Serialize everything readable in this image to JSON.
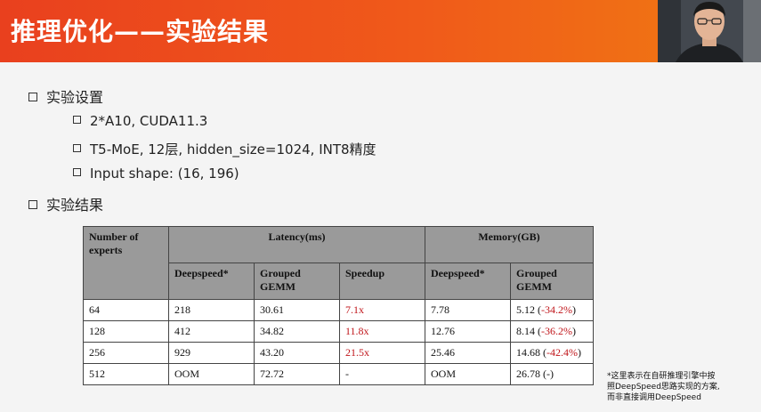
{
  "slide": {
    "title": "推理优化——实验结果",
    "bullets": [
      {
        "text": "实验设置",
        "level": 1
      },
      {
        "text": "2*A10, CUDA11.3",
        "level": 2
      },
      {
        "text": "T5-MoE, 12层, hidden_size=1024, INT8精度",
        "level": 2
      },
      {
        "text": "Input shape: (16, 196)",
        "level": 2
      },
      {
        "text": "实验结果",
        "level": 1
      }
    ],
    "note_lines": [
      "*这里表示在自研推理引擎中按",
      "照DeepSpeed思路实现的方案,",
      "而非直接调用DeepSpeed"
    ]
  },
  "table": {
    "header": {
      "experts": "Number of experts",
      "latency": "Latency(ms)",
      "memory": "Memory(GB)",
      "deepspeed": "Deepspeed*",
      "grouped_gemm": "Grouped GEMM",
      "speedup": "Speedup",
      "mem_deepspeed": "Deepspeed*",
      "mem_grouped_gemm": "Grouped GEMM"
    },
    "rows": [
      {
        "experts": "64",
        "deepspeed": "218",
        "grouped": "30.61",
        "speedup": "7.1x",
        "mem_ds": "7.78",
        "mem_gg": "5.12",
        "mem_gg_delta": "-34.2%"
      },
      {
        "experts": "128",
        "deepspeed": "412",
        "grouped": "34.82",
        "speedup": "11.8x",
        "mem_ds": "12.76",
        "mem_gg": "8.14",
        "mem_gg_delta": "-36.2%"
      },
      {
        "experts": "256",
        "deepspeed": "929",
        "grouped": "43.20",
        "speedup": "21.5x",
        "mem_ds": "25.46",
        "mem_gg": "14.68",
        "mem_gg_delta": "-42.4%"
      },
      {
        "experts": "512",
        "deepspeed": "OOM",
        "grouped": "72.72",
        "speedup": "-",
        "mem_ds": "OOM",
        "mem_gg": "26.78",
        "mem_gg_delta": "-"
      }
    ],
    "colors": {
      "highlight": "#c0161b",
      "header_bg": "#9a9a9a"
    }
  }
}
